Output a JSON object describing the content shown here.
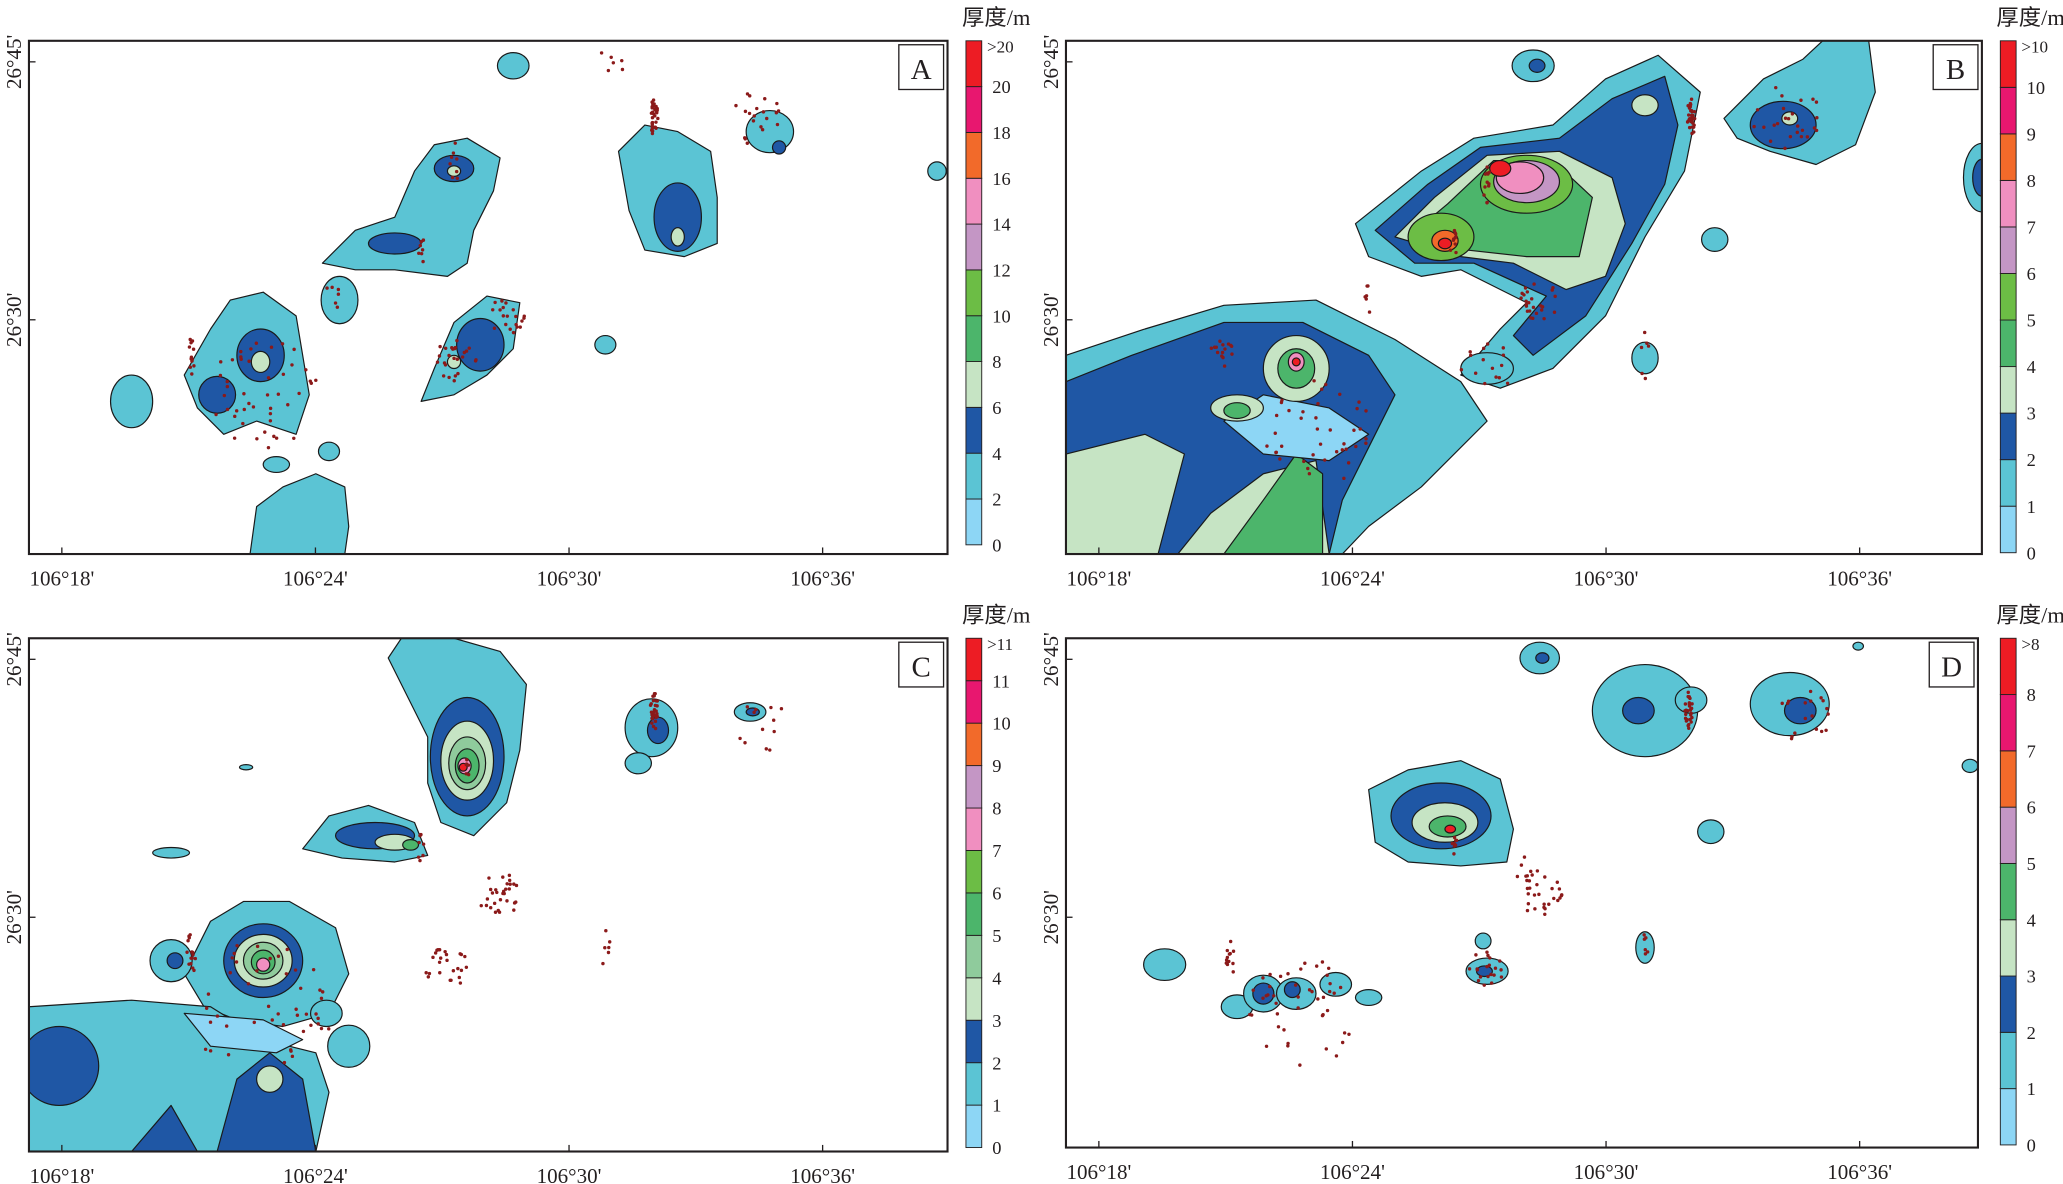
{
  "legend_title": "厚度/m",
  "x_ticks": [
    "106°18'",
    "106°24'",
    "106°30'",
    "106°36'"
  ],
  "y_ticks": [
    "26°45'",
    "26°30'"
  ],
  "colors": {
    "light_blue": "#8dd6f5",
    "cyan": "#5bc4d4",
    "dark_blue": "#1f57a5",
    "pale_green": "#c6e4c4",
    "mid_green": "#8fcb9c",
    "green": "#4cb56b",
    "light_green": "#6cbd45",
    "lavender": "#c496c5",
    "pink": "#f08fc0",
    "orange": "#f26a2a",
    "magenta": "#e8176f",
    "red": "#ed1c24",
    "borehole": "#8b1a1a"
  },
  "panels": [
    {
      "label": "A",
      "legend_labels": [
        "0",
        "2",
        "4",
        "6",
        "8",
        "10",
        "12",
        "14",
        "16",
        "18",
        "20",
        ">20"
      ],
      "legend_colors": [
        "#8dd6f5",
        "#5bc4d4",
        "#1f57a5",
        "#c6e4c4",
        "#4cb56b",
        "#6cbd45",
        "#c496c5",
        "#f08fc0",
        "#f26a2a",
        "#e8176f",
        "#ed1c24"
      ]
    },
    {
      "label": "B",
      "legend_labels": [
        "0",
        "1",
        "2",
        "3",
        "4",
        "5",
        "6",
        "7",
        "8",
        "9",
        "10",
        ">10"
      ],
      "legend_colors": [
        "#8dd6f5",
        "#5bc4d4",
        "#1f57a5",
        "#c6e4c4",
        "#4cb56b",
        "#6cbd45",
        "#c496c5",
        "#f08fc0",
        "#f26a2a",
        "#e8176f",
        "#ed1c24"
      ]
    },
    {
      "label": "C",
      "legend_labels": [
        "0",
        "1",
        "2",
        "3",
        "4",
        "5",
        "6",
        "7",
        "8",
        "9",
        "10",
        "11",
        ">11"
      ],
      "legend_colors": [
        "#8dd6f5",
        "#5bc4d4",
        "#1f57a5",
        "#c6e4c4",
        "#8fcb9c",
        "#4cb56b",
        "#6cbd45",
        "#f08fc0",
        "#c496c5",
        "#f26a2a",
        "#e8176f",
        "#ed1c24"
      ]
    },
    {
      "label": "D",
      "legend_labels": [
        "0",
        "1",
        "2",
        "3",
        "4",
        "5",
        "6",
        "7",
        "8",
        ">8"
      ],
      "legend_colors": [
        "#8dd6f5",
        "#5bc4d4",
        "#1f57a5",
        "#c6e4c4",
        "#4cb56b",
        "#c496c5",
        "#f26a2a",
        "#e8176f",
        "#ed1c24"
      ]
    }
  ]
}
